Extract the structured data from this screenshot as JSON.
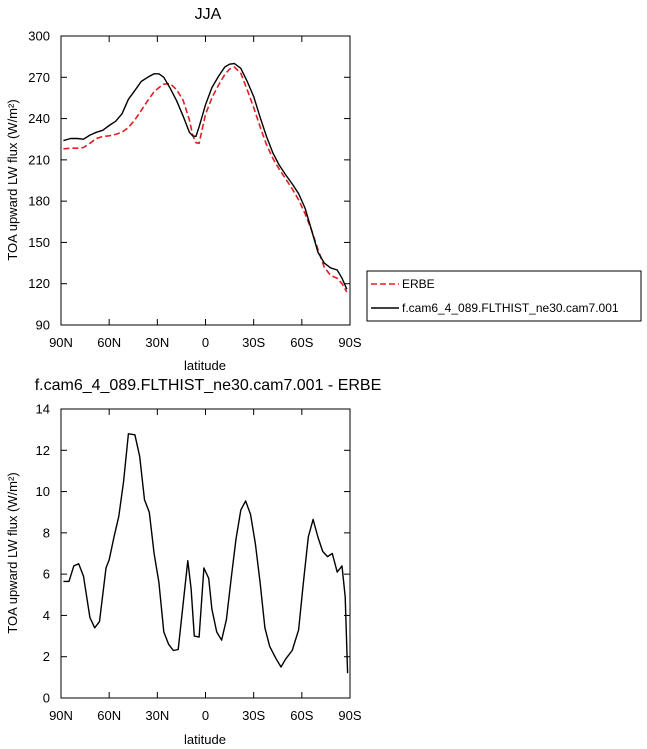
{
  "chart_data": [
    {
      "type": "line",
      "title": "JJA",
      "xlabel": "latitude",
      "ylabel": "TOA upward LW flux (W/m²)",
      "xlim": [
        90,
        -90
      ],
      "ylim": [
        90,
        300
      ],
      "x_ticks": [
        90,
        60,
        30,
        0,
        -30,
        -60,
        -90
      ],
      "x_tick_labels": [
        "90N",
        "60N",
        "30N",
        "0",
        "30S",
        "60S",
        "90S"
      ],
      "y_ticks": [
        90,
        120,
        150,
        180,
        210,
        240,
        270,
        300
      ],
      "y_tick_labels": [
        "90",
        "120",
        "150",
        "180",
        "210",
        "240",
        "270",
        "300"
      ],
      "legend_placement": "right, outside plot",
      "series": [
        {
          "name": "ERBE",
          "color": "#e02020",
          "dash": "dashed",
          "x": [
            88.5,
            84,
            80,
            76,
            72,
            68,
            64,
            60,
            56,
            52,
            48,
            44,
            40,
            36,
            32,
            29,
            26,
            22,
            18,
            14,
            10,
            8,
            6,
            4,
            0,
            -4,
            -8,
            -12,
            -15,
            -18,
            -22,
            -26,
            -30,
            -34,
            -38,
            -42,
            -46,
            -50,
            -54,
            -58,
            -62,
            -66,
            -70,
            -74,
            -78,
            -82,
            -85,
            -88
          ],
          "y": [
            218,
            218.5,
            218.5,
            219,
            222,
            225.5,
            227,
            227.5,
            228.5,
            230,
            233.5,
            239,
            246,
            253,
            259.5,
            262.5,
            265,
            265.5,
            261,
            253.5,
            239,
            228,
            222.5,
            222,
            243,
            255,
            264,
            272,
            276,
            277.5,
            273,
            261,
            248,
            234,
            221,
            211,
            203,
            196,
            189,
            181,
            171,
            159,
            145,
            132,
            126,
            124,
            120,
            114
          ]
        },
        {
          "name": "f.cam6_4_089.FLTHIST_ne30.cam7.001",
          "color": "#000000",
          "dash": "solid",
          "x": [
            88.5,
            84,
            80,
            76,
            72,
            68,
            64,
            60,
            56,
            52,
            48,
            44,
            40,
            36,
            32,
            29,
            26,
            22,
            18,
            14,
            10,
            8,
            6,
            4,
            0,
            -4,
            -8,
            -12,
            -15,
            -18,
            -22,
            -26,
            -30,
            -34,
            -38,
            -42,
            -46,
            -50,
            -54,
            -58,
            -62,
            -66,
            -70,
            -74,
            -78,
            -82,
            -85,
            -88
          ],
          "y": [
            224,
            225.5,
            225.5,
            225,
            228,
            230,
            231.5,
            235,
            238,
            243.5,
            254,
            260.5,
            267,
            270,
            272.5,
            272.5,
            270,
            262,
            253,
            242,
            230,
            227.5,
            227,
            234,
            250,
            262.5,
            270.5,
            277.5,
            279.5,
            280,
            276.5,
            267,
            256,
            241,
            227,
            215,
            206,
            199,
            192.5,
            185.5,
            175,
            159,
            143,
            135,
            131.5,
            130,
            124,
            116
          ]
        }
      ]
    },
    {
      "type": "line",
      "title": "f.cam6_4_089.FLTHIST_ne30.cam7.001 - ERBE",
      "xlabel": "latitude",
      "ylabel": "TOA upward LW flux (W/m²)",
      "xlim": [
        90,
        -90
      ],
      "ylim": [
        0,
        14
      ],
      "x_ticks": [
        90,
        60,
        30,
        0,
        -30,
        -60,
        -90
      ],
      "x_tick_labels": [
        "90N",
        "60N",
        "30N",
        "0",
        "30S",
        "60S",
        "90S"
      ],
      "y_ticks": [
        0,
        2,
        4,
        6,
        8,
        10,
        12,
        14
      ],
      "y_tick_labels": [
        "0",
        "2",
        "4",
        "6",
        "8",
        "10",
        "12",
        "14"
      ],
      "series": [
        {
          "color": "#000000",
          "dash": "solid",
          "x": [
            88.5,
            85,
            82,
            79,
            76,
            72,
            69,
            66,
            62,
            60,
            57,
            54,
            51,
            48,
            44,
            41,
            38,
            35,
            32,
            29,
            26,
            23,
            20,
            17,
            14,
            11,
            9,
            7,
            4,
            1,
            -2,
            -4,
            -7,
            -10,
            -13,
            -16,
            -19,
            -22,
            -25,
            -28,
            -31,
            -34,
            -37,
            -40,
            -44,
            -47,
            -50,
            -54,
            -58,
            -61,
            -64,
            -67,
            -70,
            -73,
            -76,
            -79,
            -82,
            -85,
            -87,
            -88.5
          ],
          "y": [
            5.65,
            5.65,
            6.4,
            6.5,
            5.9,
            3.9,
            3.4,
            3.7,
            6.3,
            6.7,
            7.8,
            8.8,
            10.5,
            12.8,
            12.75,
            11.7,
            9.6,
            9.0,
            7.0,
            5.6,
            3.2,
            2.6,
            2.3,
            2.35,
            4.5,
            6.65,
            5.3,
            3.0,
            2.95,
            6.3,
            5.8,
            4.3,
            3.2,
            2.8,
            3.8,
            5.8,
            7.7,
            9.1,
            9.55,
            8.9,
            7.5,
            5.6,
            3.4,
            2.5,
            1.9,
            1.5,
            1.9,
            2.3,
            3.3,
            5.6,
            7.8,
            8.65,
            7.8,
            7.1,
            6.85,
            7.0,
            6.1,
            6.4,
            4.9,
            1.2
          ]
        }
      ]
    }
  ]
}
